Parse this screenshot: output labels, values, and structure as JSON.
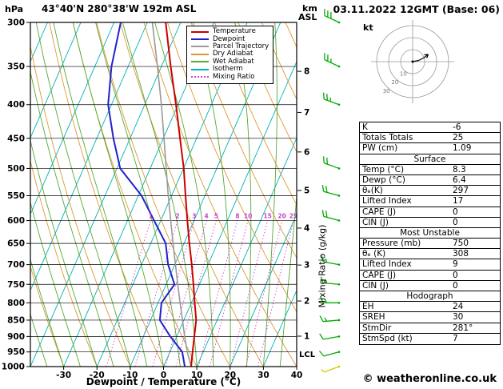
{
  "header": {
    "pressure_unit": "hPa",
    "title": "43°40'N 280°38'W 192m ASL",
    "datetime": "03.11.2022 12GMT (Base: 06)",
    "alt_unit_top": "km",
    "alt_unit_bottom": "ASL"
  },
  "axes": {
    "xlabel": "Dewpoint / Temperature (°C)",
    "right_label": "Mixing Ratio (g/kg)",
    "lcl_label": "LCL",
    "pressure_ticks": [
      300,
      350,
      400,
      450,
      500,
      550,
      600,
      650,
      700,
      750,
      800,
      850,
      900,
      950,
      1000
    ],
    "temp_ticks": [
      -30,
      -20,
      -10,
      0,
      10,
      20,
      30,
      40
    ],
    "km_ticks": [
      [
        1,
        899
      ],
      [
        2,
        795
      ],
      [
        3,
        701
      ],
      [
        4,
        616
      ],
      [
        5,
        540
      ],
      [
        6,
        472
      ],
      [
        7,
        411
      ],
      [
        8,
        356
      ]
    ]
  },
  "legend": [
    {
      "label": "Temperature",
      "color": "#cc0000",
      "dashed": false
    },
    {
      "label": "Dewpoint",
      "color": "#2222cc",
      "dashed": false
    },
    {
      "label": "Parcel Trajectory",
      "color": "#999999",
      "dashed": false
    },
    {
      "label": "Dry Adiabat",
      "color": "#dd9933",
      "dashed": false
    },
    {
      "label": "Wet Adiabat",
      "color": "#55aa33",
      "dashed": false
    },
    {
      "label": "Isotherm",
      "color": "#00b2b2",
      "dashed": false
    },
    {
      "label": "Mixing Ratio",
      "color": "#cc44cc",
      "dashed": true
    }
  ],
  "chart_data": {
    "type": "skewt_log_p_sounding",
    "pressure_range_hPa": [
      300,
      1000
    ],
    "temp_axis_range_c": [
      -40,
      40
    ],
    "pressures": [
      1000,
      950,
      900,
      850,
      800,
      750,
      700,
      650,
      600,
      550,
      500,
      450,
      400,
      350,
      300
    ],
    "temperature_c": [
      8.3,
      6.8,
      5.3,
      3.7,
      1.0,
      -1.8,
      -4.9,
      -8.4,
      -12.0,
      -15.8,
      -19.9,
      -25.0,
      -30.6,
      -37.2,
      -44.5
    ],
    "dewpoint_c": [
      6.4,
      3.7,
      -1.9,
      -7.2,
      -9.0,
      -7.5,
      -12.0,
      -15.5,
      -22.0,
      -29.0,
      -39.0,
      -45.0,
      -51.0,
      -55.0,
      -58.0
    ],
    "parcel_c": [
      8.3,
      5.2,
      2.4,
      -0.4,
      -3.4,
      -6.5,
      -9.8,
      -13.3,
      -17.0,
      -21.0,
      -25.2,
      -29.8,
      -35.0,
      -41.2,
      -48.5
    ],
    "lcl_pressure_hPa": 965,
    "mixing_ratio_lines_gkg": [
      1,
      2,
      3,
      4,
      5,
      8,
      10,
      15,
      20,
      25
    ],
    "isotherm_step_c": 10,
    "dry_adiabat_step_c": 10,
    "wet_adiabat_step_c": 5,
    "winds": [
      {
        "p": 1000,
        "spd": 7,
        "dir": 250,
        "yellow": true
      },
      {
        "p": 950,
        "spd": 10,
        "dir": 255
      },
      {
        "p": 900,
        "spd": 10,
        "dir": 260
      },
      {
        "p": 850,
        "spd": 15,
        "dir": 265
      },
      {
        "p": 800,
        "spd": 15,
        "dir": 270
      },
      {
        "p": 750,
        "spd": 15,
        "dir": 275
      },
      {
        "p": 700,
        "spd": 15,
        "dir": 280
      },
      {
        "p": 600,
        "spd": 20,
        "dir": 285
      },
      {
        "p": 550,
        "spd": 20,
        "dir": 285
      },
      {
        "p": 500,
        "spd": 20,
        "dir": 290
      },
      {
        "p": 400,
        "spd": 25,
        "dir": 290
      },
      {
        "p": 350,
        "spd": 25,
        "dir": 295
      },
      {
        "p": 300,
        "spd": 30,
        "dir": 295
      }
    ]
  },
  "hodograph": {
    "unit": "kt",
    "ring_step_kt": 10,
    "ring_labels": [
      "10",
      "20",
      "30"
    ],
    "trace_uv_kt": [
      [
        0,
        0
      ],
      [
        5,
        1
      ],
      [
        9,
        3
      ],
      [
        13,
        6
      ]
    ]
  },
  "stats": {
    "sections": [
      {
        "title": "",
        "rows": [
          [
            "K",
            "-6"
          ],
          [
            "Totals Totals",
            "25"
          ],
          [
            "PW (cm)",
            "1.09"
          ]
        ]
      },
      {
        "title": "Surface",
        "rows": [
          [
            "Temp (°C)",
            "8.3"
          ],
          [
            "Dewp (°C)",
            "6.4"
          ],
          [
            "θₑ(K)",
            "297"
          ],
          [
            "Lifted Index",
            "17"
          ],
          [
            "CAPE (J)",
            "0"
          ],
          [
            "CIN (J)",
            "0"
          ]
        ]
      },
      {
        "title": "Most Unstable",
        "rows": [
          [
            "Pressure (mb)",
            "750"
          ],
          [
            "θₑ (K)",
            "308"
          ],
          [
            "Lifted Index",
            "9"
          ],
          [
            "CAPE (J)",
            "0"
          ],
          [
            "CIN (J)",
            "0"
          ]
        ]
      },
      {
        "title": "Hodograph",
        "rows": [
          [
            "EH",
            "24"
          ],
          [
            "SREH",
            "30"
          ],
          [
            "StmDir",
            "281°"
          ],
          [
            "StmSpd (kt)",
            "7"
          ]
        ]
      }
    ]
  },
  "footer": {
    "copyright": "© weatheronline.co.uk"
  },
  "colors": {
    "temperature": "#cc0000",
    "dewpoint": "#2222cc",
    "parcel": "#999999",
    "dry_adiabat": "#dd9933",
    "wet_adiabat": "#55aa33",
    "isotherm": "#00b2b2",
    "mixing_ratio": "#cc44cc",
    "isobar": "#000000",
    "wind_barb": "#00aa00",
    "wind_barb_surface": "#cccc00"
  }
}
